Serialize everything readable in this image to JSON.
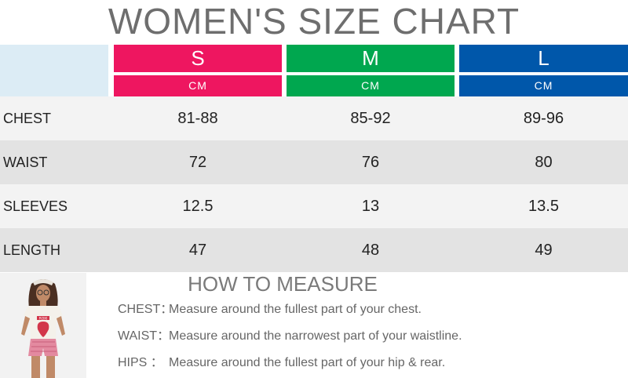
{
  "title": "WOMEN'S SIZE CHART",
  "sizes": [
    {
      "label": "S",
      "unit": "CM",
      "color": "#ee1660"
    },
    {
      "label": "M",
      "unit": "CM",
      "color": "#00a74f"
    },
    {
      "label": "L",
      "unit": "CM",
      "color": "#0057aa"
    }
  ],
  "rows": [
    {
      "label": "CHEST",
      "values": [
        "81-88",
        "85-92",
        "89-96"
      ],
      "bg": "#f3f3f3"
    },
    {
      "label": "WAIST",
      "values": [
        "72",
        "76",
        "80"
      ],
      "bg": "#e3e3e3"
    },
    {
      "label": "SLEEVES",
      "values": [
        "12.5",
        "13",
        "13.5"
      ],
      "bg": "#f3f3f3"
    },
    {
      "label": "LENGTH",
      "values": [
        "47",
        "48",
        "49"
      ],
      "bg": "#e3e3e3"
    }
  ],
  "how_to_measure": {
    "title": "HOW TO MEASURE",
    "items": [
      {
        "key": "CHEST：",
        "text": "Measure around the fullest part of your chest."
      },
      {
        "key": "WAIST：",
        "text": "Measure around the narrowest part of your waistline."
      },
      {
        "key": "HIPS  ：",
        "text": "Measure around the fullest part of your hip & rear."
      }
    ]
  },
  "model_photo": {
    "shirt_print": "ROXI"
  }
}
